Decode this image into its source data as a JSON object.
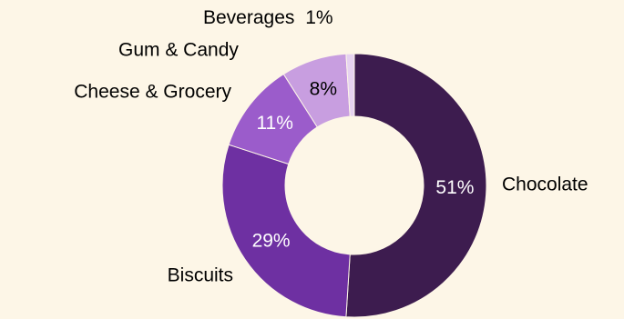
{
  "chart_data": {
    "type": "pie",
    "donut": true,
    "title": "",
    "slices": [
      {
        "label": "Chocolate",
        "value": 51,
        "display": "51%",
        "color": "#3d1c4f",
        "text_color": "#ffffff"
      },
      {
        "label": "Biscuits",
        "value": 29,
        "display": "29%",
        "color": "#6e30a2",
        "text_color": "#ffffff"
      },
      {
        "label": "Cheese & Grocery",
        "value": 11,
        "display": "11%",
        "color": "#9b5ccb",
        "text_color": "#ffffff"
      },
      {
        "label": "Gum & Candy",
        "value": 8,
        "display": "8%",
        "color": "#c89ee0",
        "text_color": "#000000"
      },
      {
        "label": "Beverages",
        "value": 1,
        "display": "1%",
        "color": "#e6d2f0",
        "text_color": "#000000"
      }
    ],
    "legend": "none"
  }
}
